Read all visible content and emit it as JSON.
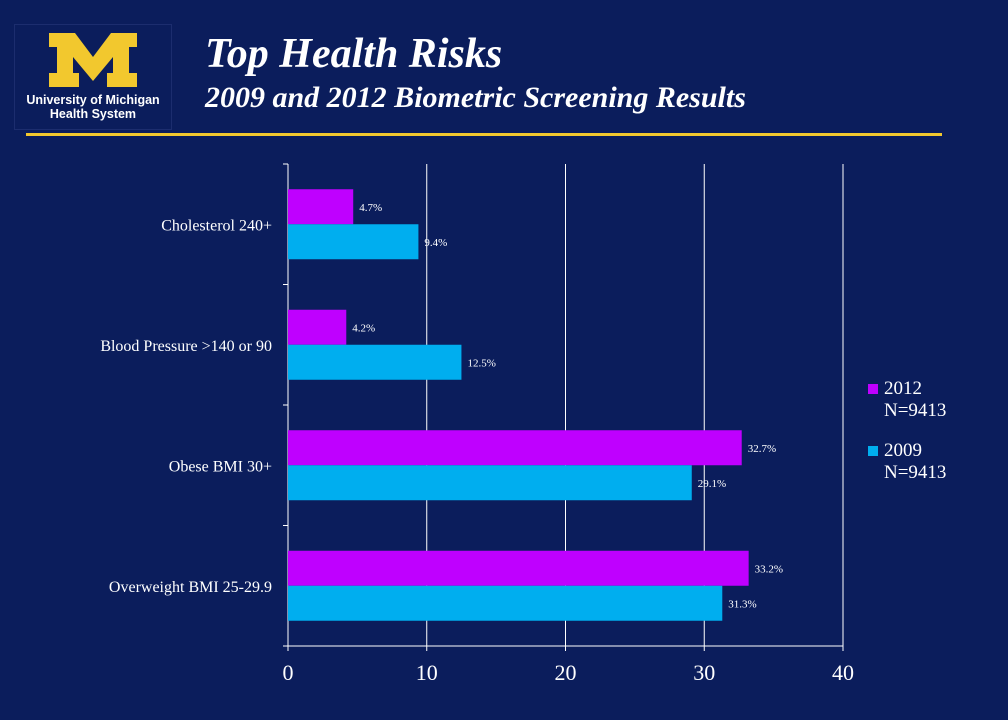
{
  "header": {
    "title": "Top Health Risks",
    "subtitle": "2009 and 2012 Biometric Screening Results"
  },
  "logo": {
    "mark": "M",
    "line1": "University of Michigan",
    "line2": "Health System",
    "mark_color": "#f2c82e"
  },
  "colors": {
    "background": "#0b1d5c",
    "rule": "#f2c82e"
  },
  "chart_data": {
    "type": "bar",
    "orientation": "horizontal",
    "categories": [
      "Cholesterol 240+",
      "Blood Pressure >140 or 90",
      "Obese BMI 30+",
      "Overweight BMI 25-29.9"
    ],
    "series": [
      {
        "name": "2012",
        "legend_lines": [
          "2012",
          "N=9413"
        ],
        "color": "#bf00ff",
        "values": [
          4.7,
          4.2,
          32.7,
          33.2
        ],
        "labels": [
          "4.7%",
          "4.2%",
          "32.7%",
          "33.2%"
        ]
      },
      {
        "name": "2009",
        "legend_lines": [
          "2009",
          "N=9413"
        ],
        "color": "#00aeef",
        "values": [
          9.4,
          12.5,
          29.1,
          31.3
        ],
        "labels": [
          "9.4%",
          "12.5%",
          "29.1%",
          "31.3%"
        ]
      }
    ],
    "xlim": [
      0,
      40
    ],
    "xticks": [
      0,
      10,
      20,
      30,
      40
    ],
    "grid": true,
    "legend_position": "right"
  }
}
